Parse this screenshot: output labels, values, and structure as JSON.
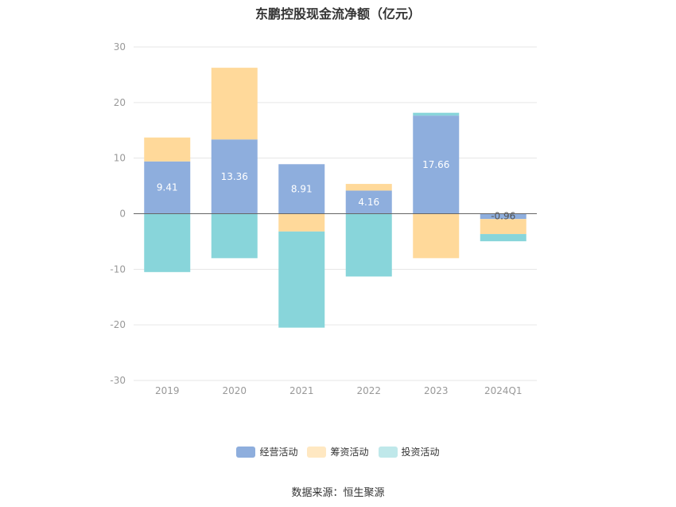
{
  "title": "东鹏控股现金流净额（亿元）",
  "source": "数据来源：恒生聚源",
  "colors": {
    "operating": "#8eaedd",
    "financing": "#ffd99a",
    "investing": "#88d5da",
    "grid": "#e6e6e6",
    "zero_line": "#666666"
  },
  "chart_data": {
    "type": "bar",
    "stacked": true,
    "categories": [
      "2019",
      "2020",
      "2021",
      "2022",
      "2023",
      "2024Q1"
    ],
    "ylim": [
      -30,
      30
    ],
    "yticks": [
      30,
      20,
      10,
      0,
      -10,
      -20,
      -30
    ],
    "series": [
      {
        "name": "经营活动",
        "color_key": "operating",
        "values": [
          9.41,
          13.36,
          8.91,
          4.16,
          17.66,
          -0.96
        ],
        "show_labels": true
      },
      {
        "name": "筹资活动",
        "color_key": "financing",
        "values": [
          4.3,
          12.9,
          -3.2,
          1.2,
          -8.0,
          -2.7
        ],
        "show_labels": false
      },
      {
        "name": "投资活动",
        "color_key": "investing",
        "values": [
          -10.5,
          -8.0,
          -17.3,
          -11.3,
          0.5,
          -1.3
        ],
        "show_labels": false
      }
    ],
    "legend_position": "bottom",
    "grid": true
  }
}
